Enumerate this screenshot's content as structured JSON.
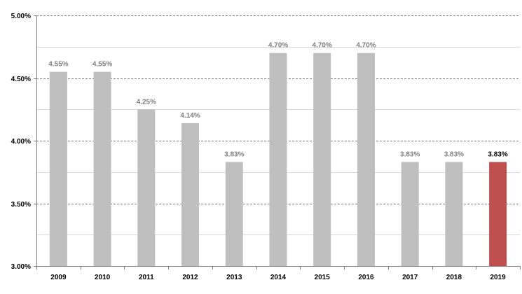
{
  "chart_data": {
    "type": "bar",
    "title": "",
    "xlabel": "",
    "ylabel": "",
    "categories": [
      "2009",
      "2010",
      "2011",
      "2012",
      "2013",
      "2014",
      "2015",
      "2016",
      "2017",
      "2018",
      "2019"
    ],
    "values": [
      4.55,
      4.55,
      4.25,
      4.14,
      3.83,
      4.7,
      4.7,
      4.7,
      3.83,
      3.83,
      3.83
    ],
    "value_labels": [
      "4.55%",
      "4.55%",
      "4.25%",
      "4.14%",
      "3.83%",
      "4.70%",
      "4.70%",
      "4.70%",
      "3.83%",
      "3.83%",
      "3.83%"
    ],
    "highlight_index": 10,
    "ylim": [
      3.0,
      5.0
    ],
    "y_ticks": [
      {
        "value": 3.0,
        "label": "3.00%"
      },
      {
        "value": 3.5,
        "label": "3.50%"
      },
      {
        "value": 4.0,
        "label": "4.00%"
      },
      {
        "value": 4.5,
        "label": "4.50%"
      },
      {
        "value": 5.0,
        "label": "5.00%"
      }
    ],
    "gridlines": {
      "major": [
        3.5,
        4.0,
        4.5,
        5.0
      ],
      "minor": [
        3.25,
        3.75,
        4.25,
        4.75
      ]
    },
    "legend": "none",
    "colors": {
      "bar": "#bfbfbf",
      "highlight_bar": "#c0504d",
      "label": "#7f7f7f",
      "highlight_label": "#000000",
      "major_grid": "#808080",
      "minor_grid": "#d9d9d9",
      "axis": "#808080"
    }
  }
}
